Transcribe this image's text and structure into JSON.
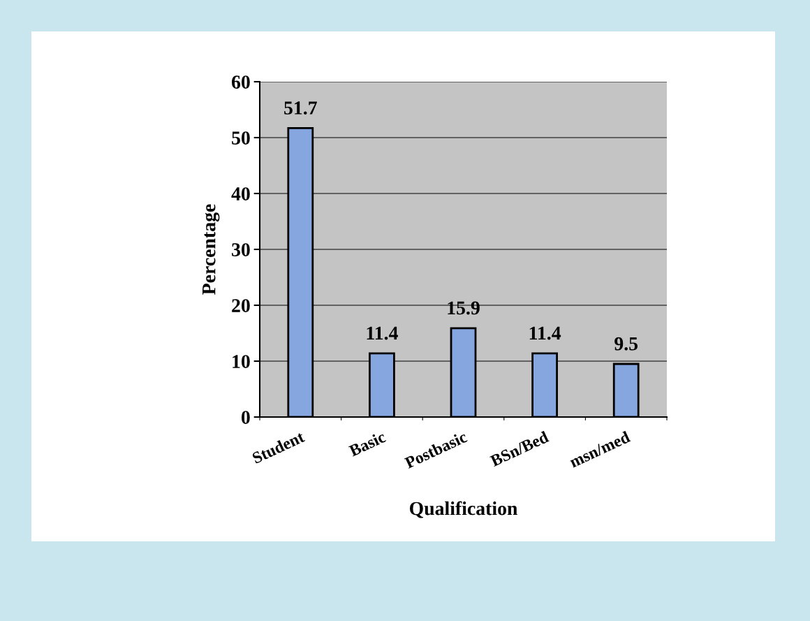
{
  "chart_data": {
    "type": "bar",
    "xlabel": "Qualification",
    "ylabel": "Percentage",
    "categories": [
      "Student",
      "Basic",
      "Postbasic",
      "BSn/Bed",
      "msn/med"
    ],
    "values": [
      51.7,
      11.4,
      15.9,
      11.4,
      9.5
    ],
    "color": "#86a6e0",
    "ylim": [
      0,
      60
    ],
    "yticks": [
      0,
      10,
      20,
      30,
      40,
      50,
      60
    ],
    "grid": "y",
    "data_labels": true,
    "legend": false
  }
}
